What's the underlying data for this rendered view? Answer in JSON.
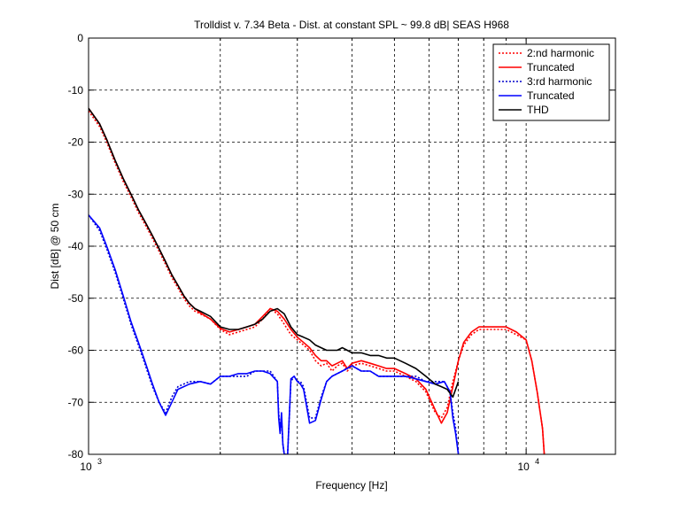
{
  "chart_data": {
    "type": "line",
    "title": "Trolldist v. 7.34 Beta - Dist. at constant SPL ~ 99.8 dB| SEAS H968",
    "xlabel": "Frequency [Hz]",
    "ylabel": "Dist [dB] @ 50 cm",
    "xscale": "log",
    "xlim": [
      1000,
      16000
    ],
    "ylim": [
      -80,
      0
    ],
    "xticks": [
      {
        "value": 1000,
        "base": "10",
        "exp": "3"
      },
      {
        "value": 10000,
        "base": "10",
        "exp": "4"
      }
    ],
    "yticks": [
      0,
      -10,
      -20,
      -30,
      -40,
      -50,
      -60,
      -70,
      -80
    ],
    "ytick_labels": [
      "0",
      "-10",
      "-20",
      "-30",
      "-40",
      "-50",
      "-60",
      "-70",
      "-80"
    ],
    "grid": true,
    "legend_position": "top-right",
    "series": [
      {
        "name": "2:nd harmonic",
        "color": "#ff0000",
        "dash": "dotted",
        "x": [
          1000,
          1060,
          1100,
          1150,
          1200,
          1250,
          1300,
          1350,
          1400,
          1450,
          1500,
          1550,
          1600,
          1650,
          1700,
          1750,
          1800,
          1900,
          2000,
          2100,
          2200,
          2300,
          2400,
          2500,
          2600,
          2700,
          2800,
          2900,
          3000,
          3100,
          3200,
          3300,
          3400,
          3500,
          3600,
          3700,
          3800,
          3900,
          4000,
          4200,
          4400,
          4600,
          4800,
          5000,
          5300,
          5600,
          5900,
          6200,
          6400,
          6600,
          6800,
          7000,
          7200,
          7500,
          7800,
          8000,
          8300,
          8600,
          9000,
          9500,
          10000,
          10300,
          10600,
          10900,
          11000
        ],
        "y": [
          -14,
          -17,
          -20,
          -24,
          -27.5,
          -30.5,
          -33.5,
          -36,
          -38.5,
          -41,
          -43.5,
          -46,
          -48,
          -50,
          -51.5,
          -52.5,
          -53,
          -54,
          -56,
          -57,
          -56.5,
          -56,
          -55.5,
          -54,
          -52,
          -53,
          -55,
          -57,
          -58,
          -59,
          -60,
          -62,
          -63,
          -62.5,
          -64,
          -63,
          -62.5,
          -64,
          -63,
          -62.5,
          -63,
          -63.5,
          -64,
          -64,
          -65,
          -66,
          -68,
          -72,
          -73,
          -71,
          -66,
          -62,
          -59,
          -57,
          -56,
          -56,
          -56,
          -56,
          -56,
          -57,
          -58,
          -62,
          -68,
          -75,
          -80
        ]
      },
      {
        "name": "Truncated",
        "color": "#ff0000",
        "dash": "solid",
        "x": [
          1000,
          1060,
          1100,
          1150,
          1200,
          1250,
          1300,
          1350,
          1400,
          1450,
          1500,
          1550,
          1600,
          1650,
          1700,
          1750,
          1800,
          1900,
          2000,
          2100,
          2200,
          2300,
          2400,
          2500,
          2600,
          2700,
          2800,
          2900,
          3000,
          3100,
          3200,
          3300,
          3400,
          3500,
          3600,
          3700,
          3800,
          3900,
          4000,
          4200,
          4400,
          4600,
          4800,
          5000,
          5300,
          5600,
          5900,
          6200,
          6400,
          6600,
          6800,
          7000,
          7200,
          7500,
          7800,
          8000,
          8300,
          8600,
          9000,
          9500,
          10000,
          10300,
          10600,
          10900,
          11000
        ],
        "y": [
          -13.5,
          -16.5,
          -19.5,
          -23.5,
          -27,
          -30,
          -33,
          -35.5,
          -38,
          -40.5,
          -43,
          -45.5,
          -47.5,
          -49.5,
          -51,
          -52,
          -52.8,
          -54,
          -55.8,
          -56.5,
          -56,
          -55.5,
          -55,
          -53.5,
          -52,
          -52.5,
          -54,
          -56,
          -57.5,
          -58.5,
          -59.5,
          -61,
          -62,
          -62,
          -63,
          -62.5,
          -62,
          -63.5,
          -62.5,
          -62,
          -62.5,
          -63,
          -63.5,
          -63.5,
          -64.5,
          -65.5,
          -67.5,
          -71.5,
          -74,
          -72,
          -67,
          -62,
          -58.5,
          -56.5,
          -55.5,
          -55.5,
          -55.5,
          -55.5,
          -55.5,
          -56.5,
          -58,
          -62,
          -68,
          -75,
          -80
        ]
      },
      {
        "name": "3:rd harmonic",
        "color": "#0000cc",
        "dash": "dotted",
        "x": [
          1000,
          1060,
          1100,
          1150,
          1200,
          1250,
          1300,
          1350,
          1400,
          1450,
          1500,
          1550,
          1600,
          1700,
          1800,
          1900,
          2000,
          2100,
          2200,
          2300,
          2400,
          2500,
          2600,
          2700,
          2720,
          2740,
          2760,
          2780,
          2800,
          2850,
          2900,
          2950,
          3000,
          3050,
          3100,
          3200,
          3300,
          3400,
          3500,
          3600,
          3800,
          4000,
          4200,
          4400,
          4600,
          4800,
          5000,
          5300,
          5600,
          5900,
          6200,
          6500,
          6700,
          6800,
          6900,
          7000
        ],
        "y": [
          -34,
          -37,
          -40.5,
          -45,
          -50,
          -55,
          -59,
          -63,
          -67,
          -70,
          -72,
          -69,
          -67,
          -66,
          -66,
          -66.5,
          -65,
          -65,
          -65,
          -65,
          -64,
          -64,
          -64,
          -66,
          -72,
          -75,
          -73,
          -78,
          -80,
          -80,
          -66,
          -65,
          -66,
          -66,
          -67,
          -73,
          -73,
          -69,
          -66,
          -65,
          -64,
          -63,
          -64,
          -64,
          -65,
          -65,
          -65,
          -65,
          -65,
          -66,
          -66,
          -66,
          -68,
          -72,
          -75,
          -80
        ]
      },
      {
        "name": "Truncated",
        "color": "#0000ff",
        "dash": "solid",
        "x": [
          1000,
          1060,
          1100,
          1150,
          1200,
          1250,
          1300,
          1350,
          1400,
          1450,
          1500,
          1550,
          1600,
          1700,
          1800,
          1900,
          2000,
          2100,
          2200,
          2300,
          2400,
          2500,
          2600,
          2700,
          2720,
          2740,
          2760,
          2780,
          2800,
          2850,
          2900,
          2950,
          3000,
          3050,
          3100,
          3200,
          3300,
          3400,
          3500,
          3600,
          3800,
          4000,
          4200,
          4400,
          4600,
          4800,
          5000,
          5300,
          5600,
          5900,
          6200,
          6500,
          6700,
          6800,
          6900,
          7000
        ],
        "y": [
          -34,
          -36.5,
          -40,
          -44.5,
          -49.5,
          -54.5,
          -58.5,
          -62.5,
          -66.5,
          -70,
          -72.5,
          -70,
          -67.5,
          -66.5,
          -66,
          -66.5,
          -65,
          -65,
          -64.5,
          -64.5,
          -64,
          -64,
          -64.5,
          -66,
          -73,
          -76,
          -72,
          -78,
          -80,
          -80,
          -65.5,
          -65,
          -66,
          -66.5,
          -67.5,
          -74,
          -73.5,
          -69.5,
          -66,
          -65,
          -64,
          -63,
          -64,
          -64,
          -65,
          -65,
          -65,
          -65,
          -65.5,
          -66,
          -66.5,
          -66,
          -68,
          -73,
          -76,
          -80
        ]
      },
      {
        "name": "THD",
        "color": "#000000",
        "dash": "solid",
        "x": [
          1000,
          1060,
          1100,
          1150,
          1200,
          1250,
          1300,
          1350,
          1400,
          1450,
          1500,
          1550,
          1600,
          1650,
          1700,
          1750,
          1800,
          1900,
          2000,
          2100,
          2200,
          2300,
          2400,
          2500,
          2600,
          2700,
          2800,
          2900,
          3000,
          3100,
          3200,
          3300,
          3400,
          3500,
          3600,
          3700,
          3800,
          3900,
          4000,
          4200,
          4400,
          4600,
          4800,
          5000,
          5300,
          5600,
          5900,
          6200,
          6400,
          6600,
          6800,
          7000
        ],
        "y": [
          -13.5,
          -16.5,
          -19.5,
          -23.5,
          -27,
          -30,
          -33,
          -35.5,
          -38,
          -40.5,
          -43,
          -45.5,
          -47.5,
          -49.5,
          -51,
          -52,
          -52.5,
          -53.5,
          -55.5,
          -56,
          -56,
          -55.5,
          -55,
          -54,
          -52.5,
          -52,
          -53,
          -55.5,
          -57,
          -57.5,
          -58,
          -59,
          -59.5,
          -60,
          -60,
          -60,
          -59.5,
          -60,
          -60.5,
          -60.5,
          -61,
          -61,
          -61.5,
          -61.5,
          -62.5,
          -63.5,
          -65,
          -66.5,
          -67,
          -67.5,
          -69,
          -66
        ]
      }
    ]
  }
}
